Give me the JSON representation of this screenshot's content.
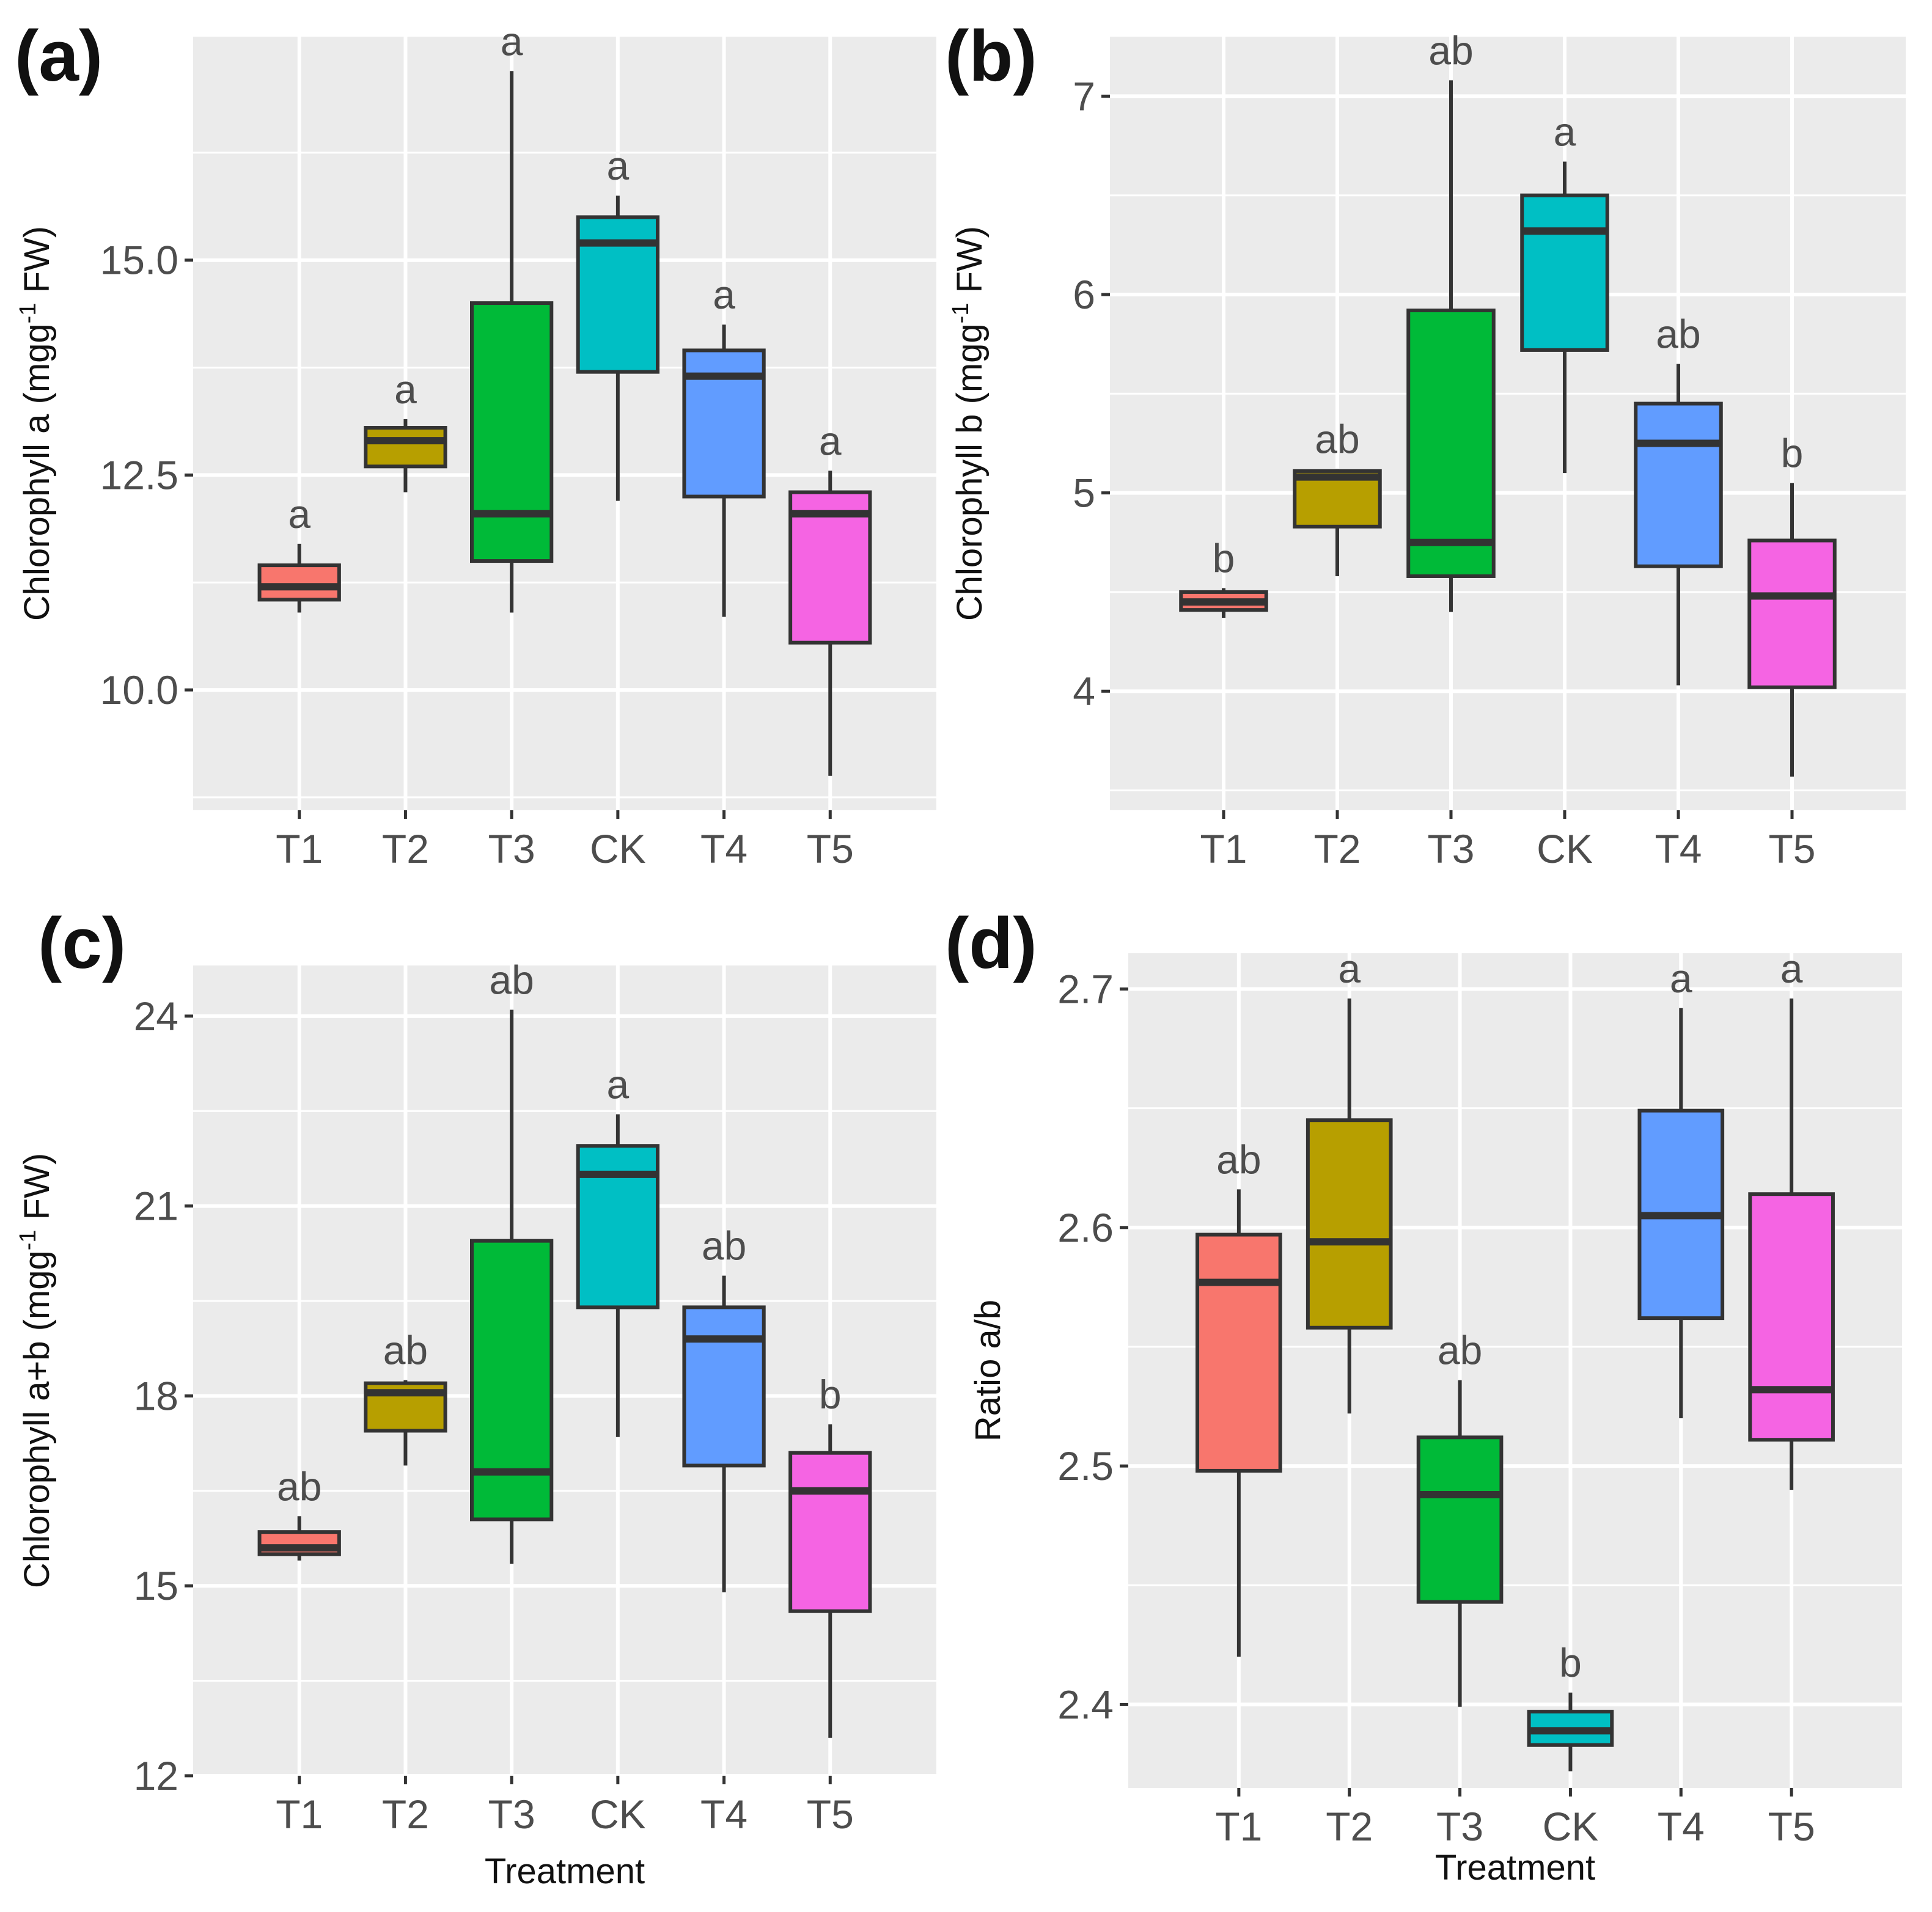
{
  "figure": {
    "colors": {
      "panel_bg": "#ebebeb",
      "grid": "#ffffff",
      "box_stroke": "#333333",
      "T1": "#f8766d",
      "T2": "#b79f00",
      "T3": "#00ba38",
      "CK": "#00bfc4",
      "T4": "#619cff",
      "T5": "#f564e3"
    }
  },
  "chart_data": [
    {
      "type": "boxplot",
      "panel_label": "(a)",
      "ylabel": "Chlorophyll a (mgg⁻¹ FW)",
      "xlabel": "",
      "ylim": [
        8.6,
        17.6
      ],
      "yticks": [
        10.0,
        12.5,
        15.0
      ],
      "ytick_labels": [
        "10.0",
        "12.5",
        "15.0"
      ],
      "categories": [
        "T1",
        "T2",
        "T3",
        "CK",
        "T4",
        "T5"
      ],
      "boxes": [
        {
          "name": "T1",
          "whisker_low": 10.9,
          "q1": 11.05,
          "median": 11.2,
          "q3": 11.45,
          "whisker_high": 11.7,
          "label": "a"
        },
        {
          "name": "T2",
          "whisker_low": 12.3,
          "q1": 12.6,
          "median": 12.9,
          "q3": 13.05,
          "whisker_high": 13.15,
          "label": "a"
        },
        {
          "name": "T3",
          "whisker_low": 10.9,
          "q1": 11.5,
          "median": 12.05,
          "q3": 14.5,
          "whisker_high": 17.2,
          "label": "a"
        },
        {
          "name": "CK",
          "whisker_low": 12.2,
          "q1": 13.7,
          "median": 15.2,
          "q3": 15.5,
          "whisker_high": 15.75,
          "label": "a"
        },
        {
          "name": "T4",
          "whisker_low": 10.85,
          "q1": 12.25,
          "median": 13.65,
          "q3": 13.95,
          "whisker_high": 14.25,
          "label": "a"
        },
        {
          "name": "T5",
          "whisker_low": 9.0,
          "q1": 10.55,
          "median": 12.05,
          "q3": 12.3,
          "whisker_high": 12.55,
          "label": "a"
        }
      ]
    },
    {
      "type": "boxplot",
      "panel_label": "(b)",
      "ylabel": "Chlorophyll b (mgg⁻¹ FW)",
      "xlabel": "",
      "ylim": [
        3.4,
        7.3
      ],
      "yticks": [
        4,
        5,
        6,
        7
      ],
      "ytick_labels": [
        "4",
        "5",
        "6",
        "7"
      ],
      "categories": [
        "T1",
        "T2",
        "T3",
        "CK",
        "T4",
        "T5"
      ],
      "boxes": [
        {
          "name": "T1",
          "whisker_low": 4.37,
          "q1": 4.41,
          "median": 4.45,
          "q3": 4.5,
          "whisker_high": 4.52,
          "label": "b"
        },
        {
          "name": "T2",
          "whisker_low": 4.58,
          "q1": 4.83,
          "median": 5.08,
          "q3": 5.11,
          "whisker_high": 5.12,
          "label": "ab"
        },
        {
          "name": "T3",
          "whisker_low": 4.4,
          "q1": 4.58,
          "median": 4.75,
          "q3": 5.92,
          "whisker_high": 7.08,
          "label": "ab"
        },
        {
          "name": "CK",
          "whisker_low": 5.1,
          "q1": 5.72,
          "median": 6.32,
          "q3": 6.5,
          "whisker_high": 6.67,
          "label": "a"
        },
        {
          "name": "T4",
          "whisker_low": 4.03,
          "q1": 4.63,
          "median": 5.25,
          "q3": 5.45,
          "whisker_high": 5.65,
          "label": "ab"
        },
        {
          "name": "T5",
          "whisker_low": 3.57,
          "q1": 4.02,
          "median": 4.48,
          "q3": 4.76,
          "whisker_high": 5.05,
          "label": "b"
        }
      ]
    },
    {
      "type": "boxplot",
      "panel_label": "(c)",
      "ylabel": "Chlorophyll a+b (mgg⁻¹ FW)",
      "xlabel": "Treatment",
      "ylim": [
        12.0,
        24.8
      ],
      "yticks": [
        12,
        15,
        18,
        21,
        24
      ],
      "ytick_labels": [
        "12",
        "15",
        "18",
        "21",
        "24"
      ],
      "categories": [
        "T1",
        "T2",
        "T3",
        "CK",
        "T4",
        "T5"
      ],
      "boxes": [
        {
          "name": "T1",
          "whisker_low": 15.4,
          "q1": 15.5,
          "median": 15.6,
          "q3": 15.85,
          "whisker_high": 16.1,
          "label": "ab"
        },
        {
          "name": "T2",
          "whisker_low": 16.9,
          "q1": 17.45,
          "median": 18.05,
          "q3": 18.2,
          "whisker_high": 18.25,
          "label": "ab"
        },
        {
          "name": "T3",
          "whisker_low": 15.35,
          "q1": 16.05,
          "median": 16.8,
          "q3": 20.45,
          "whisker_high": 24.1,
          "label": "ab"
        },
        {
          "name": "CK",
          "whisker_low": 17.35,
          "q1": 19.4,
          "median": 21.5,
          "q3": 21.95,
          "whisker_high": 22.45,
          "label": "a"
        },
        {
          "name": "T4",
          "whisker_low": 14.9,
          "q1": 16.9,
          "median": 18.9,
          "q3": 19.4,
          "whisker_high": 19.9,
          "label": "ab"
        },
        {
          "name": "T5",
          "whisker_low": 12.6,
          "q1": 14.6,
          "median": 16.5,
          "q3": 17.1,
          "whisker_high": 17.55,
          "label": "b"
        }
      ]
    },
    {
      "type": "boxplot",
      "panel_label": "(d)",
      "ylabel": "Ratio a/b",
      "xlabel": "Treatment",
      "ylim": [
        2.365,
        2.715
      ],
      "yticks": [
        2.4,
        2.5,
        2.6,
        2.7
      ],
      "ytick_labels": [
        "2.4",
        "2.5",
        "2.6",
        "2.7"
      ],
      "categories": [
        "T1",
        "T2",
        "T3",
        "CK",
        "T4",
        "T5"
      ],
      "boxes": [
        {
          "name": "T1",
          "whisker_low": 2.42,
          "q1": 2.498,
          "median": 2.577,
          "q3": 2.597,
          "whisker_high": 2.616,
          "label": "ab"
        },
        {
          "name": "T2",
          "whisker_low": 2.522,
          "q1": 2.558,
          "median": 2.594,
          "q3": 2.645,
          "whisker_high": 2.696,
          "label": "a"
        },
        {
          "name": "T3",
          "whisker_low": 2.399,
          "q1": 2.443,
          "median": 2.488,
          "q3": 2.512,
          "whisker_high": 2.536,
          "label": "ab"
        },
        {
          "name": "CK",
          "whisker_low": 2.372,
          "q1": 2.383,
          "median": 2.389,
          "q3": 2.397,
          "whisker_high": 2.405,
          "label": "b"
        },
        {
          "name": "T4",
          "whisker_low": 2.52,
          "q1": 2.562,
          "median": 2.605,
          "q3": 2.649,
          "whisker_high": 2.692,
          "label": "a"
        },
        {
          "name": "T5",
          "whisker_low": 2.49,
          "q1": 2.511,
          "median": 2.532,
          "q3": 2.614,
          "whisker_high": 2.696,
          "label": "a"
        }
      ]
    }
  ]
}
